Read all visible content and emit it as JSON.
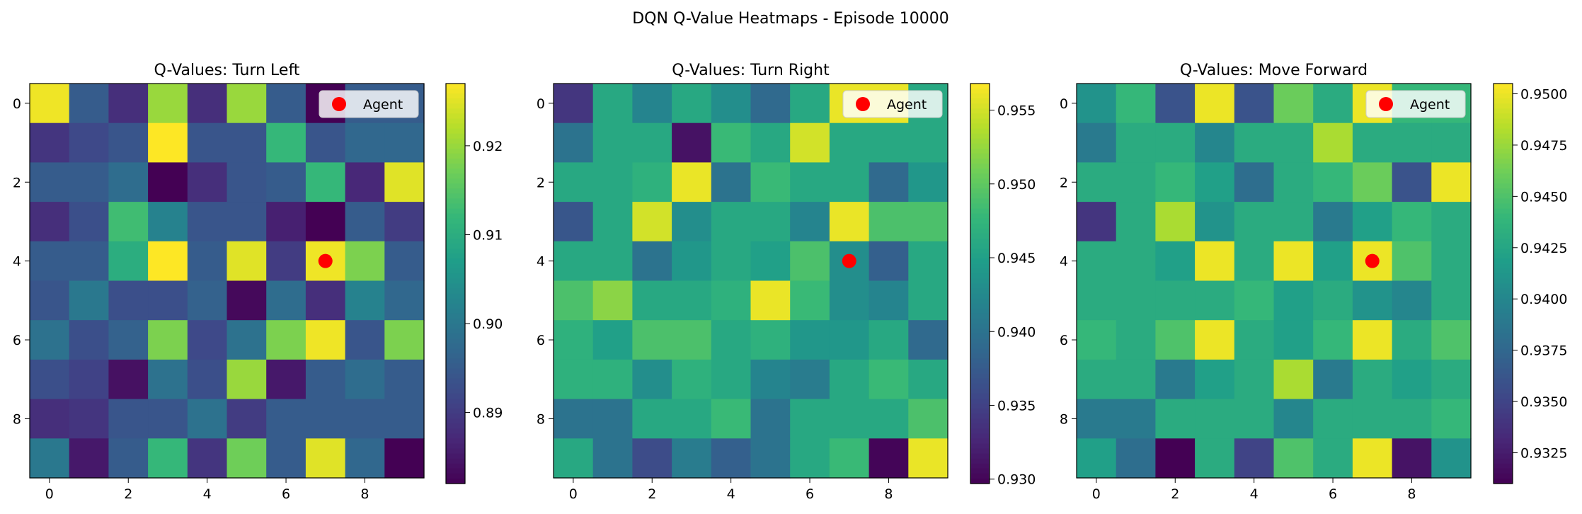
{
  "figure": {
    "suptitle": "DQN Q-Value Heatmaps - Episode 10000"
  },
  "chart_data": [
    {
      "type": "heatmap",
      "title": "Q-Values: Turn Left",
      "colormap": "viridis",
      "grid": false,
      "legend": {
        "placement": "top-right",
        "label": "Agent",
        "marker_color": "#ff0000"
      },
      "agent": {
        "col": 7,
        "row": 4
      },
      "x_ticks": [
        0,
        2,
        4,
        6,
        8
      ],
      "y_ticks": [
        0,
        2,
        4,
        6,
        8
      ],
      "vmin": 0.882,
      "vmax": 0.927,
      "colorbar_ticks": [
        "0.89",
        "0.90",
        "0.91",
        "0.92"
      ],
      "colorbar_tick_values": [
        0.89,
        0.9,
        0.91,
        0.92
      ],
      "values": [
        [
          0.926,
          0.895,
          0.888,
          0.92,
          0.888,
          0.92,
          0.895,
          0.882,
          0.895,
          0.895
        ],
        [
          0.889,
          0.892,
          0.894,
          0.927,
          0.894,
          0.894,
          0.912,
          0.894,
          0.897,
          0.897
        ],
        [
          0.895,
          0.895,
          0.898,
          0.882,
          0.888,
          0.894,
          0.895,
          0.912,
          0.887,
          0.925
        ],
        [
          0.888,
          0.893,
          0.913,
          0.902,
          0.894,
          0.894,
          0.886,
          0.882,
          0.895,
          0.89
        ],
        [
          0.895,
          0.895,
          0.91,
          0.927,
          0.895,
          0.925,
          0.89,
          0.926,
          0.918,
          0.895
        ],
        [
          0.894,
          0.9,
          0.893,
          0.893,
          0.896,
          0.883,
          0.898,
          0.888,
          0.902,
          0.897
        ],
        [
          0.899,
          0.893,
          0.896,
          0.918,
          0.892,
          0.899,
          0.918,
          0.926,
          0.894,
          0.918
        ],
        [
          0.893,
          0.891,
          0.884,
          0.899,
          0.893,
          0.92,
          0.885,
          0.895,
          0.898,
          0.895
        ],
        [
          0.888,
          0.889,
          0.894,
          0.894,
          0.899,
          0.89,
          0.895,
          0.895,
          0.895,
          0.895
        ],
        [
          0.9,
          0.885,
          0.895,
          0.912,
          0.889,
          0.917,
          0.895,
          0.925,
          0.897,
          0.882
        ]
      ]
    },
    {
      "type": "heatmap",
      "title": "Q-Values: Turn Right",
      "colormap": "viridis",
      "grid": false,
      "legend": {
        "placement": "top-right",
        "label": "Agent",
        "marker_color": "#ff0000"
      },
      "agent": {
        "col": 7,
        "row": 4
      },
      "x_ticks": [
        0,
        2,
        4,
        6,
        8
      ],
      "y_ticks": [
        0,
        2,
        4,
        6,
        8
      ],
      "vmin": 0.9297,
      "vmax": 0.9568,
      "colorbar_ticks": [
        "0.930",
        "0.935",
        "0.940",
        "0.945",
        "0.950",
        "0.955"
      ],
      "colorbar_tick_values": [
        0.93,
        0.935,
        0.94,
        0.945,
        0.95,
        0.955
      ],
      "values": [
        [
          0.934,
          0.946,
          0.942,
          0.946,
          0.943,
          0.939,
          0.946,
          0.956,
          0.956,
          0.946
        ],
        [
          0.94,
          0.946,
          0.946,
          0.931,
          0.948,
          0.946,
          0.955,
          0.946,
          0.946,
          0.946
        ],
        [
          0.946,
          0.946,
          0.947,
          0.956,
          0.94,
          0.948,
          0.946,
          0.946,
          0.939,
          0.944
        ],
        [
          0.937,
          0.946,
          0.955,
          0.943,
          0.946,
          0.946,
          0.942,
          0.956,
          0.949,
          0.949
        ],
        [
          0.946,
          0.946,
          0.94,
          0.944,
          0.946,
          0.945,
          0.949,
          0.943,
          0.938,
          0.946
        ],
        [
          0.949,
          0.952,
          0.946,
          0.946,
          0.947,
          0.956,
          0.948,
          0.943,
          0.942,
          0.946
        ],
        [
          0.947,
          0.945,
          0.949,
          0.949,
          0.946,
          0.947,
          0.944,
          0.944,
          0.946,
          0.939
        ],
        [
          0.947,
          0.947,
          0.943,
          0.947,
          0.946,
          0.942,
          0.941,
          0.946,
          0.948,
          0.946
        ],
        [
          0.94,
          0.94,
          0.946,
          0.946,
          0.948,
          0.94,
          0.946,
          0.946,
          0.946,
          0.949
        ],
        [
          0.946,
          0.94,
          0.936,
          0.941,
          0.938,
          0.94,
          0.946,
          0.948,
          0.93,
          0.956
        ]
      ]
    },
    {
      "type": "heatmap",
      "title": "Q-Values: Move Forward",
      "colormap": "viridis",
      "grid": false,
      "legend": {
        "placement": "top-right",
        "label": "Agent",
        "marker_color": "#ff0000"
      },
      "agent": {
        "col": 7,
        "row": 4
      },
      "x_ticks": [
        0,
        2,
        4,
        6,
        8
      ],
      "y_ticks": [
        0,
        2,
        4,
        6,
        8
      ],
      "vmin": 0.931,
      "vmax": 0.9505,
      "colorbar_ticks": [
        "0.9325",
        "0.9350",
        "0.9375",
        "0.9400",
        "0.9425",
        "0.9450",
        "0.9475",
        "0.9500"
      ],
      "colorbar_tick_values": [
        0.9325,
        0.935,
        0.9375,
        0.94,
        0.9425,
        0.945,
        0.9475,
        0.95
      ],
      "values": [
        [
          0.941,
          0.944,
          0.936,
          0.95,
          0.936,
          0.946,
          0.943,
          0.95,
          0.944,
          0.944
        ],
        [
          0.939,
          0.943,
          0.943,
          0.94,
          0.943,
          0.943,
          0.948,
          0.943,
          0.943,
          0.943
        ],
        [
          0.943,
          0.943,
          0.944,
          0.942,
          0.938,
          0.943,
          0.944,
          0.946,
          0.936,
          0.95
        ],
        [
          0.934,
          0.943,
          0.948,
          0.941,
          0.943,
          0.943,
          0.939,
          0.942,
          0.944,
          0.943
        ],
        [
          0.943,
          0.943,
          0.942,
          0.95,
          0.943,
          0.95,
          0.942,
          0.95,
          0.945,
          0.943
        ],
        [
          0.943,
          0.943,
          0.943,
          0.943,
          0.944,
          0.942,
          0.943,
          0.941,
          0.94,
          0.943
        ],
        [
          0.944,
          0.943,
          0.945,
          0.95,
          0.943,
          0.942,
          0.944,
          0.95,
          0.943,
          0.945
        ],
        [
          0.943,
          0.943,
          0.939,
          0.942,
          0.943,
          0.948,
          0.939,
          0.943,
          0.942,
          0.943
        ],
        [
          0.939,
          0.939,
          0.943,
          0.943,
          0.943,
          0.94,
          0.943,
          0.943,
          0.943,
          0.944
        ],
        [
          0.942,
          0.938,
          0.931,
          0.943,
          0.935,
          0.945,
          0.943,
          0.95,
          0.932,
          0.941
        ]
      ]
    }
  ]
}
